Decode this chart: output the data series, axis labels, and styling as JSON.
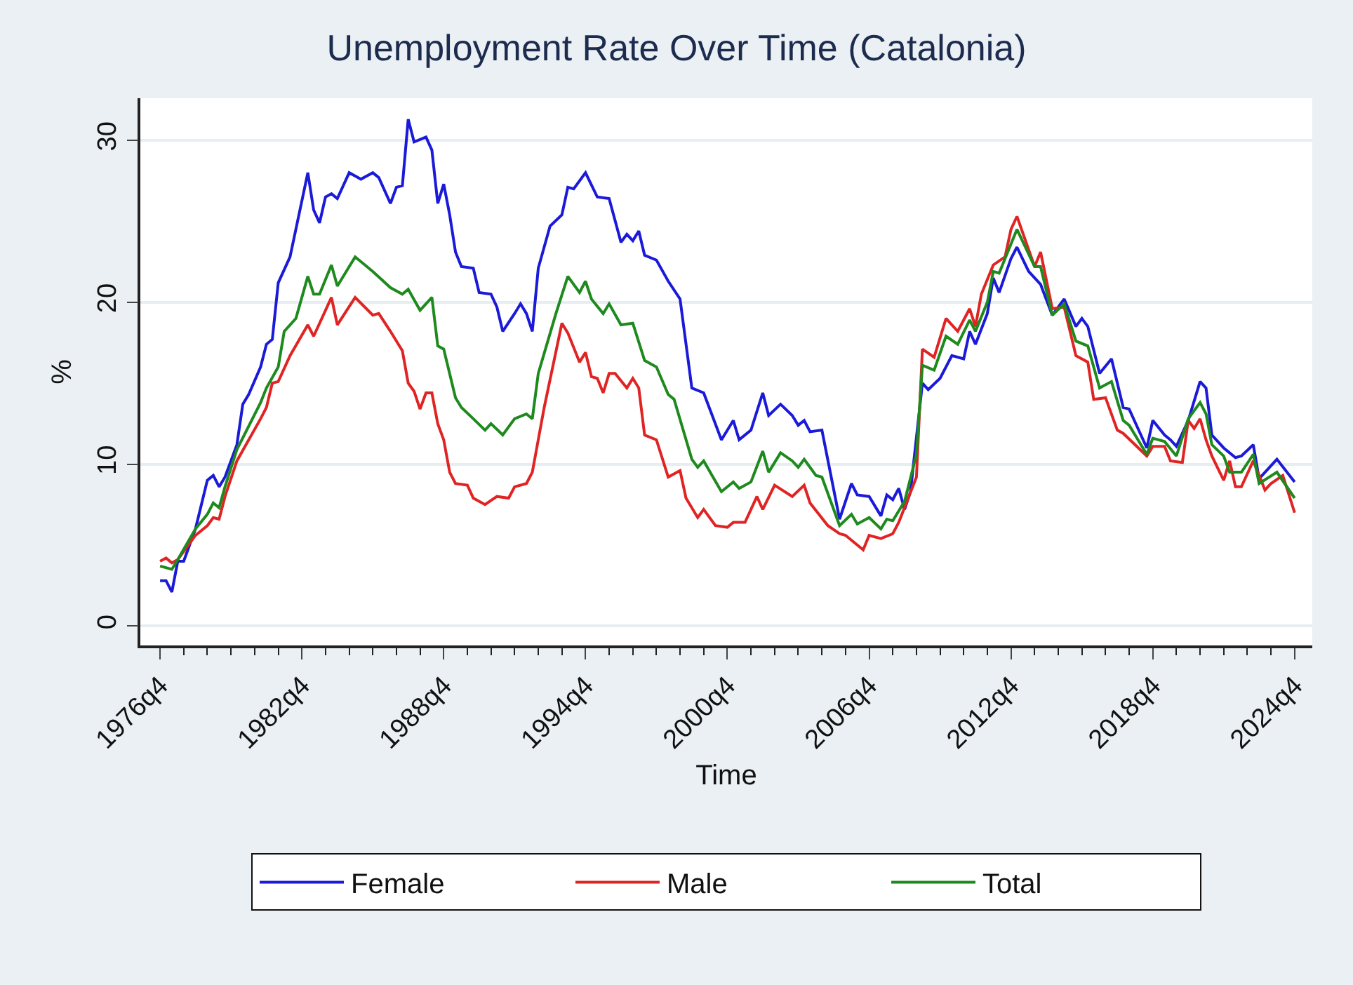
{
  "chart_data": {
    "type": "line",
    "title": "Unemployment Rate Over Time (Catalonia)",
    "xlabel": "Time",
    "ylabel": "%",
    "xlim": [
      "1975-12",
      "2025-07"
    ],
    "ylim": [
      -1.2,
      32.6
    ],
    "xticks": [
      {
        "value": "1976-10",
        "label": "1976q4"
      },
      {
        "value": "1977-10",
        "label": null
      },
      {
        "value": "1978-10",
        "label": null
      },
      {
        "value": "1979-10",
        "label": null
      },
      {
        "value": "1980-10",
        "label": null
      },
      {
        "value": "1981-10",
        "label": null
      },
      {
        "value": "1982-10",
        "label": "1982q4"
      },
      {
        "value": "1983-10",
        "label": null
      },
      {
        "value": "1984-10",
        "label": null
      },
      {
        "value": "1985-10",
        "label": null
      },
      {
        "value": "1986-10",
        "label": null
      },
      {
        "value": "1987-10",
        "label": null
      },
      {
        "value": "1988-10",
        "label": "1988q4"
      },
      {
        "value": "1989-10",
        "label": null
      },
      {
        "value": "1990-10",
        "label": null
      },
      {
        "value": "1991-10",
        "label": null
      },
      {
        "value": "1992-10",
        "label": null
      },
      {
        "value": "1993-10",
        "label": null
      },
      {
        "value": "1994-10",
        "label": "1994q4"
      },
      {
        "value": "1995-10",
        "label": null
      },
      {
        "value": "1996-10",
        "label": null
      },
      {
        "value": "1997-10",
        "label": null
      },
      {
        "value": "1998-10",
        "label": null
      },
      {
        "value": "1999-10",
        "label": null
      },
      {
        "value": "2000-10",
        "label": "2000q4"
      },
      {
        "value": "2001-10",
        "label": null
      },
      {
        "value": "2002-10",
        "label": null
      },
      {
        "value": "2003-10",
        "label": null
      },
      {
        "value": "2004-10",
        "label": null
      },
      {
        "value": "2005-10",
        "label": null
      },
      {
        "value": "2006-10",
        "label": "2006q4"
      },
      {
        "value": "2007-10",
        "label": null
      },
      {
        "value": "2008-10",
        "label": null
      },
      {
        "value": "2009-10",
        "label": null
      },
      {
        "value": "2010-10",
        "label": null
      },
      {
        "value": "2011-10",
        "label": null
      },
      {
        "value": "2012-10",
        "label": "2012q4"
      },
      {
        "value": "2013-10",
        "label": null
      },
      {
        "value": "2014-10",
        "label": null
      },
      {
        "value": "2015-10",
        "label": null
      },
      {
        "value": "2016-10",
        "label": null
      },
      {
        "value": "2017-10",
        "label": null
      },
      {
        "value": "2018-10",
        "label": "2018q4"
      },
      {
        "value": "2019-10",
        "label": null
      },
      {
        "value": "2020-10",
        "label": null
      },
      {
        "value": "2021-10",
        "label": null
      },
      {
        "value": "2022-10",
        "label": null
      },
      {
        "value": "2023-10",
        "label": null
      },
      {
        "value": "2024-10",
        "label": "2024q4"
      }
    ],
    "yticks": [
      0,
      10,
      20,
      30
    ],
    "grid": "y",
    "legend": "bottom",
    "marker": "none",
    "line_style": "solid",
    "series": [
      {
        "name": "Female",
        "color": "#1a1ad8",
        "x": [
          "1976-10",
          "1977-01",
          "1977-04",
          "1977-07",
          "1977-10",
          "1978-04",
          "1978-10",
          "1979-01",
          "1979-04",
          "1979-07",
          "1980-01",
          "1980-04",
          "1980-07",
          "1981-01",
          "1981-04",
          "1981-07",
          "1981-10",
          "1982-04",
          "1983-01",
          "1983-04",
          "1983-07",
          "1983-10",
          "1984-01",
          "1984-04",
          "1984-10",
          "1985-04",
          "1985-10",
          "1986-01",
          "1986-07",
          "1986-10",
          "1987-01",
          "1987-04",
          "1987-07",
          "1988-01",
          "1988-04",
          "1988-07",
          "1988-10",
          "1989-01",
          "1989-04",
          "1989-07",
          "1990-01",
          "1990-04",
          "1990-10",
          "1991-01",
          "1991-04",
          "1991-10",
          "1992-01",
          "1992-04",
          "1992-07",
          "1992-10",
          "1993-04",
          "1993-10",
          "1994-01",
          "1994-04",
          "1994-10",
          "1995-04",
          "1995-10",
          "1996-04",
          "1996-07",
          "1996-10",
          "1997-01",
          "1997-04",
          "1997-10",
          "1998-04",
          "1998-10",
          "1999-04",
          "1999-10",
          "2000-07",
          "2001-01",
          "2001-04",
          "2001-10",
          "2002-04",
          "2002-07",
          "2003-01",
          "2003-07",
          "2003-10",
          "2004-01",
          "2004-04",
          "2004-10",
          "2005-07",
          "2006-01",
          "2006-04",
          "2006-10",
          "2007-04",
          "2007-07",
          "2007-10",
          "2008-01",
          "2008-04",
          "2008-07",
          "2009-01",
          "2009-04",
          "2009-10",
          "2010-04",
          "2010-10",
          "2011-01",
          "2011-04",
          "2011-10",
          "2012-01",
          "2012-04",
          "2012-10",
          "2013-01",
          "2013-07",
          "2014-01",
          "2014-07",
          "2015-01",
          "2015-07",
          "2015-10",
          "2016-01",
          "2016-07",
          "2017-01",
          "2017-07",
          "2017-10",
          "2018-07",
          "2018-10",
          "2019-04",
          "2019-07",
          "2019-10",
          "2020-04",
          "2020-10",
          "2021-01",
          "2021-04",
          "2021-10",
          "2022-04",
          "2022-07",
          "2023-01",
          "2023-04",
          "2024-01",
          "2024-10"
        ],
        "values": [
          2.8,
          2.8,
          2.1,
          4.0,
          4.0,
          6.0,
          9.0,
          9.3,
          8.6,
          9.2,
          11.2,
          13.7,
          14.3,
          16.0,
          17.4,
          17.7,
          21.2,
          22.8,
          28.0,
          25.7,
          24.9,
          26.5,
          26.7,
          26.4,
          28.0,
          27.6,
          28.0,
          27.7,
          26.1,
          27.1,
          27.2,
          31.3,
          29.9,
          30.2,
          29.4,
          26.1,
          27.3,
          25.4,
          23.1,
          22.2,
          22.1,
          20.6,
          20.5,
          19.7,
          18.2,
          19.3,
          19.9,
          19.3,
          18.2,
          22.1,
          24.7,
          25.4,
          27.1,
          27.0,
          28.0,
          26.5,
          26.4,
          23.7,
          24.2,
          23.8,
          24.4,
          22.9,
          22.6,
          21.3,
          20.2,
          14.7,
          14.4,
          11.5,
          12.7,
          11.5,
          12.1,
          14.4,
          13.0,
          13.7,
          13.0,
          12.4,
          12.7,
          12.0,
          12.1,
          6.6,
          8.8,
          8.1,
          8.0,
          6.8,
          8.1,
          7.8,
          8.5,
          7.2,
          8.3,
          15.0,
          14.6,
          15.3,
          16.7,
          16.5,
          18.2,
          17.4,
          19.3,
          21.5,
          20.6,
          22.7,
          23.4,
          21.9,
          21.1,
          19.2,
          20.2,
          18.5,
          19.0,
          18.5,
          15.6,
          16.5,
          13.5,
          13.4,
          11.0,
          12.7,
          11.8,
          11.5,
          11.1,
          12.7,
          15.1,
          14.7,
          11.8,
          11.0,
          10.4,
          10.5,
          11.2,
          9.1,
          10.3,
          8.9
        ]
      },
      {
        "name": "Male",
        "color": "#e02424",
        "x": [
          "1976-10",
          "1977-01",
          "1977-04",
          "1977-07",
          "1978-04",
          "1978-10",
          "1979-01",
          "1979-04",
          "1979-07",
          "1980-01",
          "1981-01",
          "1981-04",
          "1981-07",
          "1981-10",
          "1982-04",
          "1983-01",
          "1983-04",
          "1984-01",
          "1984-04",
          "1985-01",
          "1985-10",
          "1986-01",
          "1986-07",
          "1987-01",
          "1987-04",
          "1987-07",
          "1987-10",
          "1988-01",
          "1988-04",
          "1988-07",
          "1988-10",
          "1989-01",
          "1989-04",
          "1989-10",
          "1990-01",
          "1990-07",
          "1991-01",
          "1991-07",
          "1991-10",
          "1992-04",
          "1992-07",
          "1993-01",
          "1993-10",
          "1994-01",
          "1994-07",
          "1994-10",
          "1995-01",
          "1995-04",
          "1995-07",
          "1995-10",
          "1996-01",
          "1996-07",
          "1996-10",
          "1997-01",
          "1997-04",
          "1997-10",
          "1998-04",
          "1998-10",
          "1999-01",
          "1999-07",
          "1999-10",
          "2000-04",
          "2000-10",
          "2001-01",
          "2001-07",
          "2002-01",
          "2002-04",
          "2002-10",
          "2003-07",
          "2004-01",
          "2004-04",
          "2005-01",
          "2005-07",
          "2005-10",
          "2006-07",
          "2006-10",
          "2007-04",
          "2007-10",
          "2008-01",
          "2008-10",
          "2009-01",
          "2009-07",
          "2010-01",
          "2010-07",
          "2011-01",
          "2011-04",
          "2011-07",
          "2012-01",
          "2012-07",
          "2012-10",
          "2013-01",
          "2013-10",
          "2014-01",
          "2014-07",
          "2015-01",
          "2015-07",
          "2016-01",
          "2016-04",
          "2016-10",
          "2017-04",
          "2017-07",
          "2018-07",
          "2018-10",
          "2019-04",
          "2019-07",
          "2020-01",
          "2020-04",
          "2020-07",
          "2020-10",
          "2021-01",
          "2021-04",
          "2021-10",
          "2022-01",
          "2022-04",
          "2022-07",
          "2023-01",
          "2023-07",
          "2023-10",
          "2024-04",
          "2024-10"
        ],
        "values": [
          4.0,
          4.2,
          3.9,
          4.1,
          5.6,
          6.2,
          6.7,
          6.6,
          8.0,
          10.2,
          12.8,
          13.5,
          15.0,
          15.1,
          16.7,
          18.6,
          17.9,
          20.3,
          18.6,
          20.3,
          19.2,
          19.3,
          18.2,
          17.0,
          15.0,
          14.5,
          13.4,
          14.4,
          14.4,
          12.5,
          11.5,
          9.5,
          8.8,
          8.7,
          7.9,
          7.5,
          8.0,
          7.9,
          8.6,
          8.8,
          9.5,
          13.5,
          18.7,
          18.1,
          16.3,
          16.9,
          15.4,
          15.3,
          14.4,
          15.6,
          15.6,
          14.7,
          15.3,
          14.7,
          11.8,
          11.5,
          9.2,
          9.6,
          7.9,
          6.7,
          7.2,
          6.2,
          6.1,
          6.4,
          6.4,
          8.0,
          7.2,
          8.7,
          8.0,
          8.7,
          7.6,
          6.2,
          5.7,
          5.6,
          4.7,
          5.6,
          5.4,
          5.7,
          6.4,
          9.2,
          17.1,
          16.6,
          19.0,
          18.2,
          19.6,
          18.5,
          20.5,
          22.3,
          22.8,
          24.5,
          25.3,
          22.2,
          23.1,
          19.6,
          19.7,
          16.7,
          16.3,
          14.0,
          14.1,
          12.1,
          11.9,
          10.5,
          11.1,
          11.1,
          10.2,
          10.1,
          12.7,
          12.2,
          12.8,
          11.5,
          10.5,
          9.0,
          10.2,
          8.6,
          8.6,
          10.2,
          8.4,
          8.8,
          9.3,
          7.0
        ]
      },
      {
        "name": "Total",
        "color": "#1e8a1e",
        "x": [
          "1976-10",
          "1977-04",
          "1977-07",
          "1978-04",
          "1978-10",
          "1979-01",
          "1979-04",
          "1979-07",
          "1980-01",
          "1981-01",
          "1981-04",
          "1981-10",
          "1982-01",
          "1982-07",
          "1983-01",
          "1983-04",
          "1983-07",
          "1984-01",
          "1984-04",
          "1985-01",
          "1985-10",
          "1986-07",
          "1987-01",
          "1987-04",
          "1987-10",
          "1988-04",
          "1988-07",
          "1988-10",
          "1989-04",
          "1989-07",
          "1990-01",
          "1990-07",
          "1990-10",
          "1991-04",
          "1991-10",
          "1992-04",
          "1992-07",
          "1992-10",
          "1993-07",
          "1994-01",
          "1994-07",
          "1994-10",
          "1995-01",
          "1995-07",
          "1995-10",
          "1996-04",
          "1996-10",
          "1997-04",
          "1997-10",
          "1998-04",
          "1998-07",
          "1999-04",
          "1999-07",
          "1999-10",
          "2000-07",
          "2001-01",
          "2001-04",
          "2001-10",
          "2002-04",
          "2002-07",
          "2003-01",
          "2003-07",
          "2003-10",
          "2004-01",
          "2004-07",
          "2004-10",
          "2005-07",
          "2006-01",
          "2006-04",
          "2006-10",
          "2007-04",
          "2007-07",
          "2007-10",
          "2008-04",
          "2008-10",
          "2009-01",
          "2009-07",
          "2010-01",
          "2010-07",
          "2011-01",
          "2011-04",
          "2011-10",
          "2012-01",
          "2012-04",
          "2012-10",
          "2013-01",
          "2013-10",
          "2014-01",
          "2014-07",
          "2015-01",
          "2015-07",
          "2016-01",
          "2016-07",
          "2017-01",
          "2017-07",
          "2017-10",
          "2018-07",
          "2018-10",
          "2019-04",
          "2019-10",
          "2020-04",
          "2020-10",
          "2021-01",
          "2021-04",
          "2021-10",
          "2022-01",
          "2022-07",
          "2023-01",
          "2023-04",
          "2024-01",
          "2024-10"
        ],
        "values": [
          3.7,
          3.5,
          4.1,
          6.0,
          6.9,
          7.6,
          7.3,
          8.6,
          10.9,
          13.8,
          14.7,
          16.0,
          18.2,
          19.0,
          21.6,
          20.5,
          20.5,
          22.3,
          21.0,
          22.8,
          21.9,
          20.9,
          20.5,
          20.8,
          19.5,
          20.3,
          17.3,
          17.1,
          14.1,
          13.5,
          12.8,
          12.1,
          12.5,
          11.8,
          12.8,
          13.1,
          12.8,
          15.6,
          19.3,
          21.6,
          20.6,
          21.3,
          20.2,
          19.3,
          19.9,
          18.6,
          18.7,
          16.4,
          16.0,
          14.3,
          14.0,
          10.3,
          9.8,
          10.2,
          8.3,
          8.9,
          8.5,
          8.9,
          10.8,
          9.5,
          10.7,
          10.2,
          9.8,
          10.3,
          9.3,
          9.2,
          6.2,
          6.9,
          6.3,
          6.7,
          6.0,
          6.6,
          6.5,
          7.7,
          10.6,
          16.1,
          15.8,
          17.9,
          17.4,
          18.9,
          18.2,
          20.0,
          21.9,
          21.8,
          23.6,
          24.5,
          22.2,
          22.2,
          19.2,
          19.9,
          17.6,
          17.3,
          14.7,
          15.1,
          12.7,
          12.4,
          10.6,
          11.6,
          11.4,
          10.5,
          12.8,
          13.8,
          13.1,
          11.2,
          10.5,
          9.5,
          9.5,
          10.6,
          8.8,
          9.5,
          7.9
        ]
      }
    ]
  }
}
